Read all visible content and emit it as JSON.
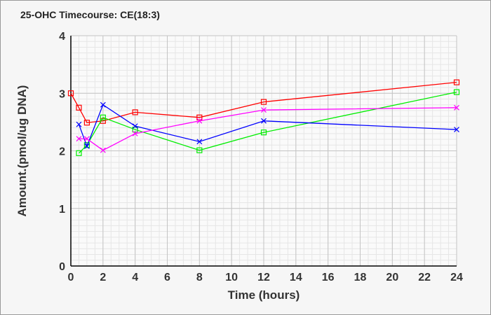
{
  "chart_data": {
    "type": "line",
    "title": "25-OHC Timecourse: CE(18:3)",
    "xlabel": "Time (hours)",
    "ylabel": "Amount.(pmol/ug DNA)",
    "xlim": [
      0,
      24
    ],
    "ylim": [
      0,
      4
    ],
    "xticks": [
      0,
      2,
      4,
      6,
      8,
      10,
      12,
      14,
      16,
      18,
      20,
      22,
      24
    ],
    "yticks": [
      0,
      1,
      2,
      3,
      4
    ],
    "grid": true,
    "series": [
      {
        "name": "red",
        "color": "#ff0000",
        "marker": "square",
        "x": [
          0,
          0.5,
          1,
          2,
          4,
          8,
          12,
          24
        ],
        "y": [
          3.0,
          2.75,
          2.49,
          2.52,
          2.67,
          2.58,
          2.85,
          3.19
        ]
      },
      {
        "name": "green",
        "color": "#00ee00",
        "marker": "square",
        "x": [
          0.5,
          1,
          2,
          4,
          8,
          12,
          24
        ],
        "y": [
          1.96,
          2.1,
          2.58,
          2.37,
          2.01,
          2.32,
          3.02
        ]
      },
      {
        "name": "blue",
        "color": "#0000ff",
        "marker": "x",
        "x": [
          0.5,
          1,
          2,
          4,
          8,
          12,
          24
        ],
        "y": [
          2.46,
          2.08,
          2.8,
          2.43,
          2.16,
          2.52,
          2.37
        ]
      },
      {
        "name": "magenta",
        "color": "#ff00ff",
        "marker": "x",
        "x": [
          0.5,
          1,
          2,
          4,
          8,
          12,
          24
        ],
        "y": [
          2.21,
          2.21,
          2.01,
          2.3,
          2.52,
          2.71,
          2.75
        ]
      }
    ]
  }
}
